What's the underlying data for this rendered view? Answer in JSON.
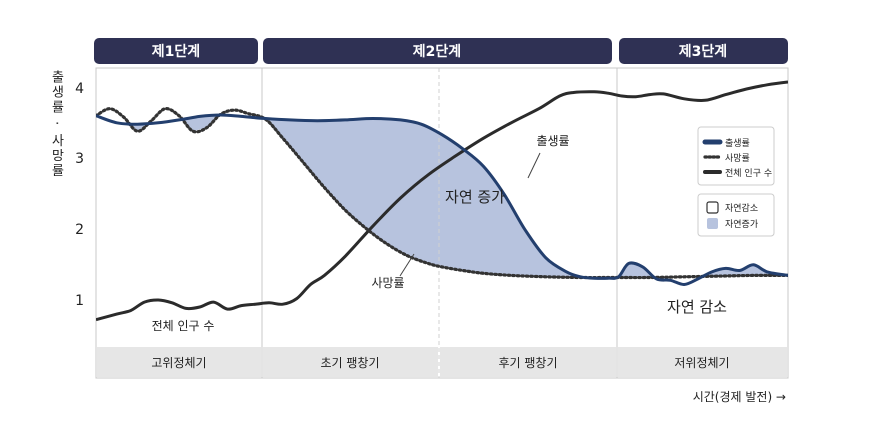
{
  "colors": {
    "header_bg": "#2f3154",
    "birth_line": "#233f6e",
    "death_line": "#333333",
    "population_line": "#2b2b2b",
    "natural_increase_fill": "#b7c3de",
    "natural_decrease_fill": "#ffffff",
    "phase_bar_bg": "#e6e6e6"
  },
  "stages": [
    {
      "label": "제1단계",
      "phase_label": "고위정체기"
    },
    {
      "label": "제2단계",
      "phase_label": "초기 팽창기"
    },
    {
      "label": "제2단계",
      "phase_label": "후기 팽창기"
    },
    {
      "label": "제3단계",
      "phase_label": "저위정체기"
    }
  ],
  "chart_data": {
    "type": "line",
    "title": "",
    "ylabel": "출생률 · 사망률",
    "xlabel": "시간(경제 발전) →",
    "ylim": [
      0.3,
      4.25
    ],
    "xlim": [
      0,
      100
    ],
    "yticks": [
      "1",
      "2",
      "3",
      "4"
    ],
    "phase_boundaries_x": [
      24.5,
      50,
      75.5
    ],
    "series": [
      {
        "name": "출생률",
        "x": [
          0,
          3,
          6,
          9,
          12,
          15,
          18,
          21,
          24.5,
          28,
          32,
          36,
          40,
          44,
          47,
          50,
          53,
          56,
          59,
          62,
          65,
          68,
          70,
          72,
          74,
          75.5,
          77,
          79,
          81,
          83,
          85,
          87,
          89,
          91,
          93,
          95,
          97,
          100
        ],
        "y": [
          3.62,
          3.52,
          3.5,
          3.52,
          3.56,
          3.61,
          3.63,
          3.61,
          3.58,
          3.56,
          3.55,
          3.56,
          3.58,
          3.56,
          3.5,
          3.35,
          3.15,
          2.9,
          2.5,
          2.0,
          1.6,
          1.4,
          1.33,
          1.31,
          1.31,
          1.33,
          1.52,
          1.47,
          1.3,
          1.28,
          1.22,
          1.3,
          1.4,
          1.45,
          1.42,
          1.5,
          1.4,
          1.35
        ]
      },
      {
        "name": "사망률",
        "x": [
          0,
          2,
          4,
          6,
          8,
          10,
          12,
          14,
          16,
          18,
          20,
          22,
          24.5,
          27,
          30,
          33,
          36,
          39,
          42,
          45,
          48,
          50,
          53,
          56,
          60,
          65,
          70,
          75.5,
          80,
          85,
          90,
          95,
          100
        ],
        "y": [
          3.62,
          3.72,
          3.6,
          3.4,
          3.55,
          3.72,
          3.62,
          3.4,
          3.45,
          3.64,
          3.7,
          3.65,
          3.57,
          3.3,
          2.95,
          2.6,
          2.28,
          2.02,
          1.8,
          1.63,
          1.52,
          1.47,
          1.42,
          1.38,
          1.35,
          1.33,
          1.32,
          1.32,
          1.32,
          1.33,
          1.34,
          1.35,
          1.35
        ]
      },
      {
        "name": "전체 인구 수",
        "x": [
          0,
          3,
          5,
          7,
          9,
          11,
          13,
          15,
          17,
          19,
          21,
          23,
          25,
          27,
          29,
          31,
          33,
          36,
          40,
          44,
          48,
          52,
          56,
          60,
          64,
          67,
          69,
          72,
          74,
          76,
          78,
          80,
          82,
          85,
          88,
          91,
          94,
          97,
          100
        ],
        "y": [
          0.72,
          0.8,
          0.85,
          0.97,
          1.0,
          0.96,
          0.88,
          0.9,
          0.97,
          0.87,
          0.92,
          0.94,
          0.96,
          0.94,
          1.02,
          1.22,
          1.35,
          1.62,
          2.05,
          2.45,
          2.78,
          3.05,
          3.3,
          3.52,
          3.72,
          3.9,
          3.95,
          3.96,
          3.94,
          3.9,
          3.89,
          3.92,
          3.93,
          3.86,
          3.84,
          3.92,
          4.0,
          4.06,
          4.1
        ]
      }
    ],
    "annotations": [
      {
        "text": "자연 증가",
        "x": 57.5,
        "y": 2.43
      },
      {
        "text": "자연 감소",
        "x": 88,
        "y": 0.93
      },
      {
        "text": "출생률",
        "x": 77,
        "y": 3.25
      },
      {
        "text": "사망률",
        "x": 44,
        "y": 1.22
      },
      {
        "text": "전체 인구 수",
        "x": 14,
        "y": 0.66
      }
    ],
    "legend": {
      "placement": "right",
      "lines": [
        {
          "label": "출생률",
          "style": "solid-thick"
        },
        {
          "label": "사망률",
          "style": "dotted"
        },
        {
          "label": "전체 인구 수",
          "style": "solid"
        }
      ],
      "areas": [
        {
          "label": "자연감소",
          "style": "empty"
        },
        {
          "label": "자연증가",
          "style": "filled"
        }
      ]
    }
  }
}
